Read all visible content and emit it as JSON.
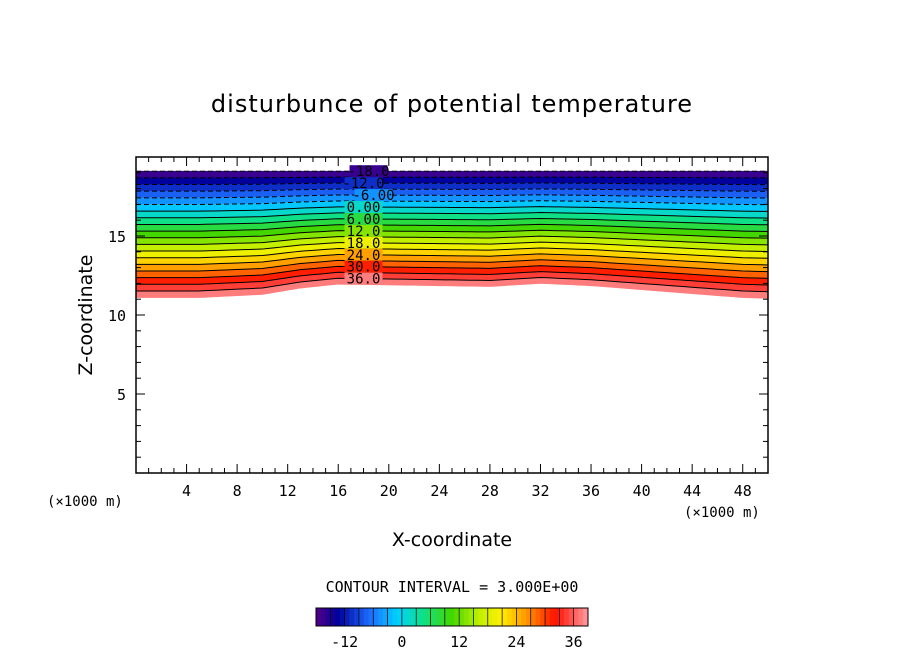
{
  "chart_data": {
    "type": "contour",
    "title": "disturbunce of potential temperature",
    "xlabel": "X-coordinate",
    "ylabel": "Z-coordinate",
    "x_unit_left": "(×1000 m)",
    "x_unit_right": "(×1000 m)",
    "xlim": [
      0,
      50
    ],
    "ylim": [
      0,
      20
    ],
    "x_ticks": [
      "4",
      "8",
      "12",
      "16",
      "20",
      "24",
      "28",
      "32",
      "36",
      "40",
      "44",
      "48"
    ],
    "y_ticks": [
      "5",
      "10",
      "15"
    ],
    "contour_labels": [
      "-18.0",
      "-12.0",
      "-6.00",
      "0.00",
      "6.00",
      "12.0",
      "18.0",
      "24.0",
      "30.0",
      "36.0"
    ],
    "contour_interval_text": "CONTOUR INTERVAL = 3.000E+00",
    "contour_min": -18,
    "contour_max": 39,
    "contour_interval": 3,
    "data_top_z": 19.1,
    "bottom_boundary": {
      "x": [
        0,
        5,
        10,
        13,
        16,
        20,
        24,
        28,
        32,
        36,
        40,
        44,
        48,
        50
      ],
      "z": [
        11.1,
        11.1,
        11.3,
        11.7,
        11.95,
        11.9,
        11.85,
        11.8,
        12.0,
        11.85,
        11.6,
        11.35,
        11.1,
        11.05
      ]
    },
    "colorbar": {
      "min": -18,
      "max": 39,
      "tick_labels": [
        "-12",
        "0",
        "12",
        "24",
        "36"
      ]
    }
  }
}
